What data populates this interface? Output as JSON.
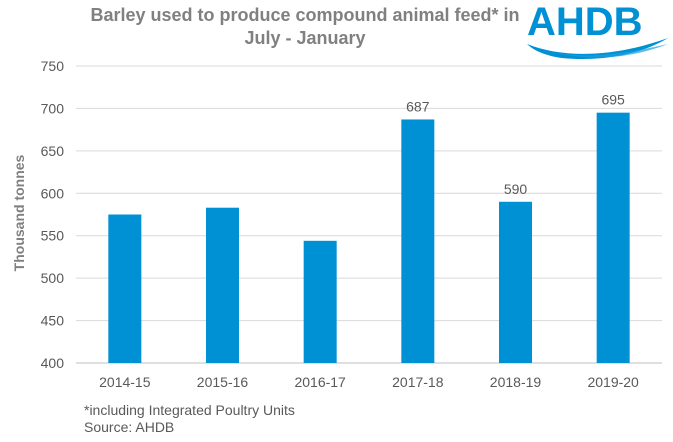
{
  "chart_data": {
    "type": "bar",
    "title": "Barley used to produce compound animal feed* in July - January",
    "xlabel": "",
    "ylabel": "Thousand tonnes",
    "categories": [
      "2014-15",
      "2015-16",
      "2016-17",
      "2017-18",
      "2018-19",
      "2019-20"
    ],
    "values": [
      575,
      583,
      544,
      687,
      590,
      695
    ],
    "data_labels": [
      "",
      "",
      "",
      "687",
      "590",
      "695"
    ],
    "ylim": [
      400,
      750
    ],
    "yticks": [
      400,
      450,
      500,
      550,
      600,
      650,
      700,
      750
    ],
    "grid": true,
    "legend": "none",
    "bar_color": "#0090D4"
  },
  "logo": {
    "text": "AHDB",
    "color": "#0090D4"
  },
  "footnote": {
    "note": "*including Integrated Poultry Units",
    "source": "Source: AHDB"
  }
}
